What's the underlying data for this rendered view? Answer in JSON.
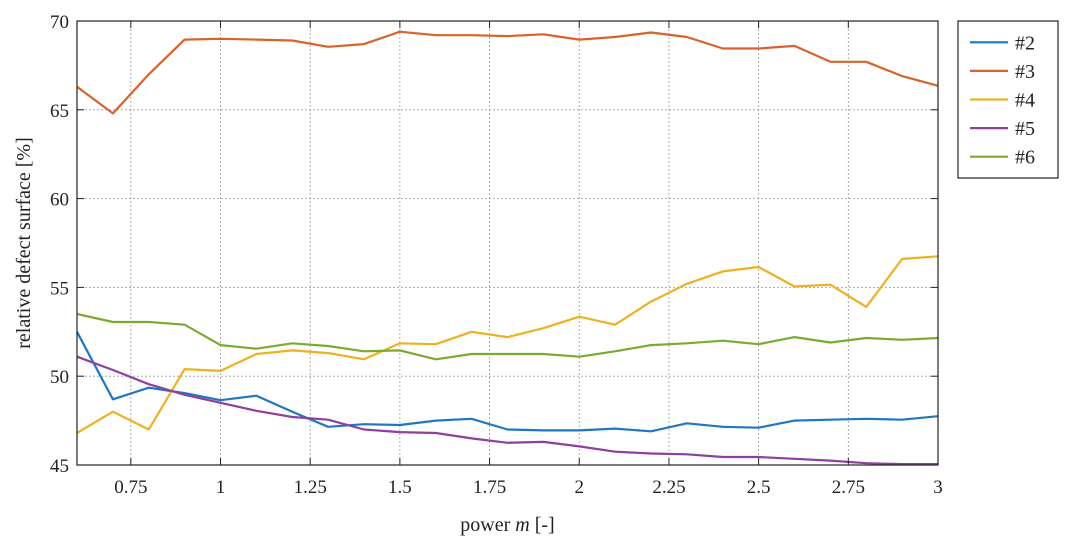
{
  "chart_data": {
    "type": "line",
    "xlabel": "power m [-]",
    "xlabel_parts": {
      "prefix": "power ",
      "var": "m",
      "suffix": " [-]"
    },
    "ylabel": "relative defect surface [%]",
    "xlim": [
      0.6,
      3
    ],
    "ylim": [
      45,
      70
    ],
    "xticks": [
      0.75,
      1,
      1.25,
      1.5,
      1.75,
      2,
      2.25,
      2.5,
      2.75,
      3
    ],
    "xtick_labels": [
      "0.75",
      "1",
      "1.25",
      "1.5",
      "1.75",
      "2",
      "2.25",
      "2.5",
      "2.75",
      "3"
    ],
    "yticks": [
      45,
      50,
      55,
      60,
      65,
      70
    ],
    "ytick_labels": [
      "45",
      "50",
      "55",
      "60",
      "65",
      "70"
    ],
    "grid": true,
    "legend_position": "outside-right-top",
    "x": [
      0.6,
      0.7,
      0.8,
      0.9,
      1.0,
      1.1,
      1.2,
      1.3,
      1.4,
      1.5,
      1.6,
      1.7,
      1.8,
      1.9,
      2.0,
      2.1,
      2.2,
      2.3,
      2.4,
      2.5,
      2.6,
      2.7,
      2.8,
      2.9,
      3.0
    ],
    "series": [
      {
        "name": "#2",
        "color": "#1f77c4",
        "values": [
          52.5,
          48.7,
          49.35,
          49.05,
          48.65,
          48.9,
          48.0,
          47.15,
          47.3,
          47.25,
          47.5,
          47.6,
          47.0,
          46.95,
          46.95,
          47.05,
          46.9,
          47.35,
          47.15,
          47.1,
          47.5,
          47.55,
          47.6,
          47.55,
          47.75
        ]
      },
      {
        "name": "#3",
        "color": "#d9622b",
        "values": [
          66.3,
          64.8,
          67.0,
          68.95,
          69.0,
          68.95,
          68.9,
          68.55,
          68.7,
          69.4,
          69.2,
          69.2,
          69.15,
          69.25,
          68.95,
          69.1,
          69.35,
          69.1,
          68.45,
          68.45,
          68.6,
          67.7,
          67.7,
          66.9,
          66.35
        ]
      },
      {
        "name": "#4",
        "color": "#edb120",
        "values": [
          46.8,
          48.0,
          47.0,
          50.4,
          50.3,
          51.25,
          51.45,
          51.3,
          50.95,
          51.85,
          51.8,
          52.5,
          52.2,
          52.7,
          53.35,
          52.9,
          54.2,
          55.2,
          55.9,
          56.15,
          55.05,
          55.15,
          53.9,
          56.6,
          56.75
        ]
      },
      {
        "name": "#5",
        "color": "#8e3fa0",
        "values": [
          51.1,
          50.35,
          49.55,
          48.95,
          48.5,
          48.05,
          47.7,
          47.55,
          47.0,
          46.85,
          46.8,
          46.5,
          46.25,
          46.3,
          46.05,
          45.75,
          45.65,
          45.6,
          45.45,
          45.45,
          45.35,
          45.25,
          45.1,
          45.05,
          45.05
        ]
      },
      {
        "name": "#6",
        "color": "#77ac30",
        "values": [
          53.5,
          53.05,
          53.05,
          52.9,
          51.75,
          51.55,
          51.85,
          51.7,
          51.4,
          51.45,
          50.95,
          51.25,
          51.25,
          51.25,
          51.1,
          51.4,
          51.75,
          51.85,
          52.0,
          51.8,
          52.2,
          51.9,
          52.15,
          52.05,
          52.15
        ]
      }
    ]
  }
}
